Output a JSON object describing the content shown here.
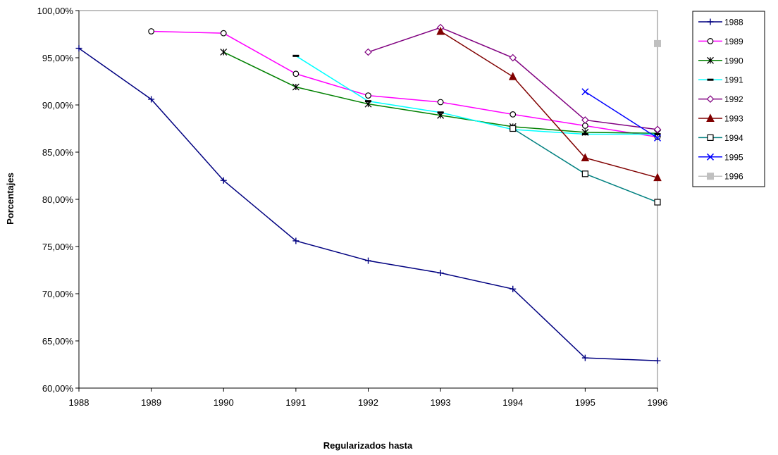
{
  "chart_data": {
    "type": "line",
    "title": "",
    "xlabel": "Regularizados hasta",
    "ylabel": "Porcentajes",
    "x": [
      1988,
      1989,
      1990,
      1991,
      1992,
      1993,
      1994,
      1995,
      1996
    ],
    "xlim": [
      1988,
      1996
    ],
    "ylim": [
      60,
      100
    ],
    "ytick_labels": [
      "60,00%",
      "65,00%",
      "70,00%",
      "75,00%",
      "80,00%",
      "85,00%",
      "90,00%",
      "95,00%",
      "100,00%"
    ],
    "grid": false,
    "legend_position": "right",
    "series": [
      {
        "name": "1988",
        "color": "#000080",
        "marker": "plus",
        "values": [
          96.0,
          90.6,
          82.0,
          75.6,
          73.5,
          72.2,
          70.5,
          63.2,
          62.9
        ]
      },
      {
        "name": "1989",
        "color": "#FF00FF",
        "marker": "circle",
        "values": [
          null,
          97.8,
          97.6,
          93.3,
          91.0,
          90.3,
          89.0,
          87.8,
          86.6
        ]
      },
      {
        "name": "1990",
        "color": "#008000",
        "marker": "asterisk",
        "values": [
          null,
          null,
          95.6,
          91.9,
          90.1,
          88.9,
          87.7,
          87.1,
          87.0
        ]
      },
      {
        "name": "1991",
        "color": "#00FFFF",
        "marker": "dash",
        "values": [
          null,
          null,
          null,
          95.2,
          90.4,
          89.2,
          87.4,
          86.9,
          86.9
        ]
      },
      {
        "name": "1992",
        "color": "#800080",
        "marker": "diamond",
        "values": [
          null,
          null,
          null,
          null,
          95.6,
          98.2,
          95.0,
          88.4,
          87.4
        ]
      },
      {
        "name": "1993",
        "color": "#800000",
        "marker": "triangle",
        "values": [
          null,
          null,
          null,
          null,
          null,
          97.8,
          93.0,
          84.4,
          82.3
        ]
      },
      {
        "name": "1994",
        "color": "#008080",
        "marker": "square",
        "values": [
          null,
          null,
          null,
          null,
          null,
          null,
          87.5,
          82.7,
          79.7
        ]
      },
      {
        "name": "1995",
        "color": "#0000FF",
        "marker": "cross",
        "values": [
          null,
          null,
          null,
          null,
          null,
          null,
          null,
          91.4,
          86.5
        ]
      },
      {
        "name": "1996",
        "color": "#C0C0C0",
        "marker": "filled-square",
        "values": [
          null,
          null,
          null,
          null,
          null,
          null,
          null,
          null,
          96.5
        ]
      }
    ]
  }
}
